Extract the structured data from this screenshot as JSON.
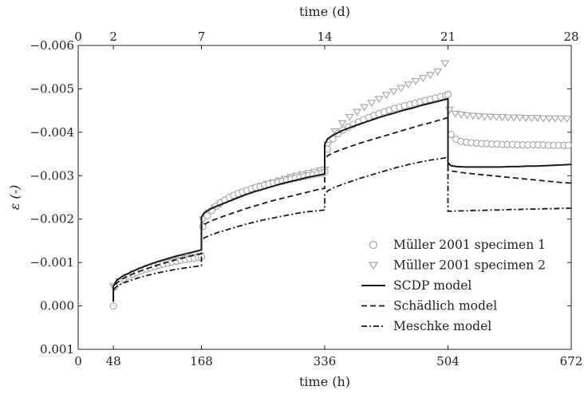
{
  "chart_data": {
    "type": "line",
    "xlabel": "time (h)",
    "xlabel_top": "time (d)",
    "ylabel": "ε (-)",
    "xlim": [
      0,
      672
    ],
    "ylim": [
      -0.006,
      0.001
    ],
    "y_inverted": true,
    "x_ticks": [
      0,
      48,
      168,
      336,
      504,
      672
    ],
    "x_tick_labels": [
      "0",
      "48",
      "168",
      "336",
      "504",
      "672"
    ],
    "x_top_ticks": [
      0,
      2,
      7,
      14,
      21,
      28
    ],
    "x_top_tick_labels": [
      "0",
      "2",
      "7",
      "14",
      "21",
      "28"
    ],
    "y_ticks": [
      -0.006,
      -0.005,
      -0.004,
      -0.003,
      -0.002,
      -0.001,
      0.0,
      0.001
    ],
    "y_tick_labels": [
      "−0.006",
      "−0.005",
      "−0.004",
      "−0.003",
      "−0.002",
      "−0.001",
      "0.000",
      "0.001"
    ],
    "grid": false,
    "legend_position": "bottom-right",
    "series": [
      {
        "name": "Müller 2001 specimen 1",
        "style": "markers",
        "marker": "circle",
        "color": "#aaaaaa",
        "x": [
          48,
          50,
          56,
          62,
          68,
          74,
          80,
          86,
          92,
          98,
          104,
          110,
          116,
          122,
          128,
          134,
          140,
          146,
          152,
          158,
          164,
          168,
          170,
          176,
          182,
          188,
          194,
          200,
          206,
          212,
          218,
          224,
          230,
          236,
          242,
          248,
          254,
          260,
          266,
          272,
          278,
          284,
          290,
          296,
          302,
          308,
          314,
          320,
          326,
          332,
          336,
          340,
          347,
          354,
          361,
          368,
          375,
          382,
          389,
          396,
          403,
          410,
          417,
          424,
          431,
          438,
          445,
          452,
          459,
          466,
          473,
          480,
          487,
          494,
          501,
          504,
          508,
          515,
          522,
          529,
          536,
          543,
          550,
          557,
          564,
          571,
          578,
          585,
          592,
          599,
          606,
          613,
          620,
          627,
          634,
          641,
          648,
          655,
          662,
          668
        ],
        "y": [
          0.0,
          -0.00044,
          -0.00056,
          -0.00063,
          -0.00068,
          -0.00073,
          -0.00077,
          -0.00081,
          -0.00085,
          -0.00088,
          -0.00091,
          -0.00094,
          -0.00096,
          -0.00099,
          -0.00101,
          -0.00103,
          -0.00105,
          -0.00107,
          -0.00109,
          -0.0011,
          -0.00112,
          -0.00113,
          -0.00183,
          -0.00208,
          -0.0022,
          -0.0023,
          -0.00238,
          -0.00244,
          -0.0025,
          -0.00255,
          -0.00259,
          -0.00263,
          -0.00266,
          -0.0027,
          -0.00273,
          -0.00275,
          -0.00278,
          -0.00281,
          -0.00283,
          -0.00285,
          -0.00287,
          -0.0029,
          -0.00292,
          -0.00294,
          -0.00296,
          -0.00298,
          -0.003,
          -0.00302,
          -0.00304,
          -0.00306,
          -0.00308,
          -0.00361,
          -0.00385,
          -0.00397,
          -0.00405,
          -0.00412,
          -0.00418,
          -0.00424,
          -0.00429,
          -0.00434,
          -0.00439,
          -0.00443,
          -0.00447,
          -0.00451,
          -0.00455,
          -0.00458,
          -0.00461,
          -0.00464,
          -0.00467,
          -0.0047,
          -0.00473,
          -0.00476,
          -0.00479,
          -0.00482,
          -0.00485,
          -0.00487,
          -0.00395,
          -0.00384,
          -0.00379,
          -0.00377,
          -0.00376,
          -0.00375,
          -0.00374,
          -0.00374,
          -0.00373,
          -0.00373,
          -0.00372,
          -0.00372,
          -0.00372,
          -0.00371,
          -0.00371,
          -0.00371,
          -0.00371,
          -0.00371,
          -0.00371,
          -0.0037,
          -0.0037,
          -0.0037,
          -0.0037,
          -0.0037
        ]
      },
      {
        "name": "Müller 2001 specimen 2",
        "style": "markers",
        "marker": "triangle-down",
        "color": "#aaaaaa",
        "x": [
          48,
          56,
          66,
          76,
          86,
          96,
          106,
          116,
          126,
          136,
          146,
          156,
          166,
          170,
          178,
          186,
          194,
          202,
          210,
          218,
          226,
          234,
          242,
          250,
          258,
          266,
          274,
          282,
          290,
          298,
          306,
          314,
          322,
          330,
          336,
          340,
          350,
          360,
          370,
          380,
          390,
          400,
          410,
          420,
          430,
          440,
          450,
          460,
          470,
          480,
          490,
          500,
          506,
          514,
          522,
          530,
          538,
          546,
          554,
          562,
          570,
          578,
          586,
          594,
          602,
          610,
          618,
          626,
          634,
          642,
          650,
          658,
          666
        ],
        "y": [
          -0.00045,
          -0.00057,
          -0.00067,
          -0.00075,
          -0.00082,
          -0.00088,
          -0.00093,
          -0.00098,
          -0.00102,
          -0.00106,
          -0.0011,
          -0.00113,
          -0.00116,
          -0.00199,
          -0.00215,
          -0.00226,
          -0.00235,
          -0.00243,
          -0.0025,
          -0.00256,
          -0.00262,
          -0.00267,
          -0.00272,
          -0.00277,
          -0.00281,
          -0.00285,
          -0.00289,
          -0.00293,
          -0.00297,
          -0.003,
          -0.00303,
          -0.00306,
          -0.00309,
          -0.00312,
          -0.00314,
          -0.00371,
          -0.00402,
          -0.00421,
          -0.00435,
          -0.00447,
          -0.00458,
          -0.00468,
          -0.00477,
          -0.00486,
          -0.00494,
          -0.00502,
          -0.0051,
          -0.00518,
          -0.00525,
          -0.00532,
          -0.0054,
          -0.00559,
          -0.00452,
          -0.00443,
          -0.00441,
          -0.00439,
          -0.00438,
          -0.00437,
          -0.00436,
          -0.00436,
          -0.00435,
          -0.00435,
          -0.00434,
          -0.00434,
          -0.00434,
          -0.00433,
          -0.00433,
          -0.00433,
          -0.00432,
          -0.00432,
          -0.00432,
          -0.00432,
          -0.00431
        ]
      },
      {
        "name": "SCDP model",
        "style": "solid",
        "color": "#1a1a1a",
        "x": [
          48,
          48,
          52,
          60,
          72,
          84,
          96,
          108,
          120,
          132,
          144,
          156,
          168,
          168,
          172,
          180,
          192,
          204,
          216,
          228,
          240,
          252,
          264,
          276,
          288,
          300,
          312,
          324,
          336,
          336,
          340,
          348,
          360,
          372,
          384,
          396,
          408,
          420,
          432,
          444,
          456,
          468,
          480,
          492,
          504,
          504,
          508,
          516,
          528,
          540,
          552,
          564,
          576,
          588,
          600,
          612,
          624,
          636,
          648,
          660,
          672
        ],
        "y": [
          -0.0001,
          -0.00045,
          -0.00058,
          -0.00068,
          -0.00078,
          -0.00087,
          -0.00095,
          -0.00102,
          -0.00108,
          -0.00114,
          -0.00119,
          -0.00124,
          -0.00129,
          -0.00205,
          -0.00215,
          -0.00223,
          -0.00232,
          -0.0024,
          -0.00248,
          -0.00256,
          -0.00263,
          -0.00269,
          -0.00275,
          -0.00281,
          -0.00286,
          -0.00291,
          -0.00296,
          -0.003,
          -0.00304,
          -0.00372,
          -0.00385,
          -0.00394,
          -0.00404,
          -0.00412,
          -0.00419,
          -0.00426,
          -0.00433,
          -0.00439,
          -0.00445,
          -0.00451,
          -0.00456,
          -0.00462,
          -0.00467,
          -0.00472,
          -0.00477,
          -0.0033,
          -0.00323,
          -0.00321,
          -0.0032,
          -0.0032,
          -0.0032,
          -0.0032,
          -0.0032,
          -0.00321,
          -0.00321,
          -0.00322,
          -0.00322,
          -0.00323,
          -0.00324,
          -0.00325,
          -0.00326
        ]
      },
      {
        "name": "Schädlich model",
        "style": "dashed",
        "color": "#1a1a1a",
        "x": [
          48,
          48,
          52,
          60,
          72,
          84,
          96,
          108,
          120,
          132,
          144,
          156,
          168,
          168,
          172,
          180,
          192,
          204,
          216,
          228,
          240,
          252,
          264,
          276,
          288,
          300,
          312,
          324,
          336,
          336,
          340,
          348,
          360,
          372,
          384,
          396,
          408,
          420,
          432,
          444,
          456,
          468,
          480,
          492,
          504,
          504,
          508,
          516,
          528,
          540,
          552,
          564,
          576,
          588,
          600,
          612,
          624,
          636,
          648,
          660,
          672
        ],
        "y": [
          -0.0001,
          -0.00042,
          -0.00052,
          -0.00062,
          -0.00072,
          -0.0008,
          -0.00087,
          -0.00094,
          -0.001,
          -0.00106,
          -0.00111,
          -0.00116,
          -0.0012,
          -0.0018,
          -0.00188,
          -0.00195,
          -0.00203,
          -0.0021,
          -0.00217,
          -0.00224,
          -0.0023,
          -0.00236,
          -0.00242,
          -0.00247,
          -0.00252,
          -0.00257,
          -0.00262,
          -0.00267,
          -0.00271,
          -0.00338,
          -0.00346,
          -0.00353,
          -0.00361,
          -0.00368,
          -0.00375,
          -0.00381,
          -0.00387,
          -0.00393,
          -0.00399,
          -0.00405,
          -0.00411,
          -0.00417,
          -0.00422,
          -0.00428,
          -0.00434,
          -0.00314,
          -0.00311,
          -0.00309,
          -0.00306,
          -0.00304,
          -0.00302,
          -0.003,
          -0.00298,
          -0.00296,
          -0.00294,
          -0.00292,
          -0.0029,
          -0.00288,
          -0.00286,
          -0.00284,
          -0.00283
        ]
      },
      {
        "name": "Meschke model",
        "style": "dashdot",
        "color": "#1a1a1a",
        "x": [
          48,
          48,
          52,
          60,
          72,
          84,
          96,
          108,
          120,
          132,
          144,
          156,
          168,
          168,
          172,
          180,
          192,
          204,
          216,
          228,
          240,
          252,
          264,
          276,
          288,
          300,
          312,
          324,
          336,
          336,
          340,
          348,
          360,
          372,
          384,
          396,
          408,
          420,
          432,
          444,
          456,
          468,
          480,
          492,
          504,
          504,
          508,
          516,
          528,
          540,
          552,
          564,
          576,
          588,
          600,
          612,
          624,
          636,
          648,
          660,
          672
        ],
        "y": [
          -0.0001,
          -0.00036,
          -0.00044,
          -0.00052,
          -0.00059,
          -0.00066,
          -0.00071,
          -0.00076,
          -0.0008,
          -0.00084,
          -0.00087,
          -0.0009,
          -0.00093,
          -0.0015,
          -0.00157,
          -0.00163,
          -0.0017,
          -0.00176,
          -0.00182,
          -0.00188,
          -0.00193,
          -0.00198,
          -0.00202,
          -0.00206,
          -0.0021,
          -0.00214,
          -0.00217,
          -0.00219,
          -0.00221,
          -0.00257,
          -0.00265,
          -0.00272,
          -0.0028,
          -0.00287,
          -0.00294,
          -0.003,
          -0.00306,
          -0.00312,
          -0.00318,
          -0.00323,
          -0.00328,
          -0.00332,
          -0.00336,
          -0.00339,
          -0.00342,
          -0.00218,
          -0.00218,
          -0.00219,
          -0.00219,
          -0.0022,
          -0.0022,
          -0.00221,
          -0.00221,
          -0.00222,
          -0.00222,
          -0.00223,
          -0.00223,
          -0.00224,
          -0.00224,
          -0.00225,
          -0.00225
        ]
      }
    ]
  }
}
